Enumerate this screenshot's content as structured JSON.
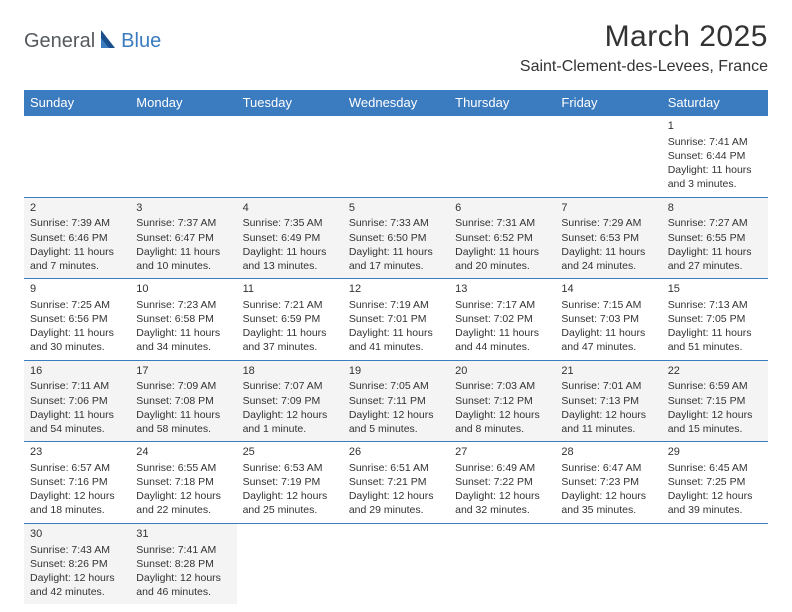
{
  "logo": {
    "part1": "General",
    "part2": "Blue"
  },
  "title": "March 2025",
  "location": "Saint-Clement-des-Levees, France",
  "colors": {
    "header_bg": "#3b7bbf",
    "header_text": "#ffffff",
    "row_alt_bg": "#f4f4f4",
    "border": "#3b7bbf",
    "logo_gray": "#555a5e",
    "logo_blue": "#3b7bbf"
  },
  "weekdays": [
    "Sunday",
    "Monday",
    "Tuesday",
    "Wednesday",
    "Thursday",
    "Friday",
    "Saturday"
  ],
  "weeks": [
    [
      null,
      null,
      null,
      null,
      null,
      null,
      {
        "day": "1",
        "sunrise": "Sunrise: 7:41 AM",
        "sunset": "Sunset: 6:44 PM",
        "daylight1": "Daylight: 11 hours",
        "daylight2": "and 3 minutes."
      }
    ],
    [
      {
        "day": "2",
        "sunrise": "Sunrise: 7:39 AM",
        "sunset": "Sunset: 6:46 PM",
        "daylight1": "Daylight: 11 hours",
        "daylight2": "and 7 minutes."
      },
      {
        "day": "3",
        "sunrise": "Sunrise: 7:37 AM",
        "sunset": "Sunset: 6:47 PM",
        "daylight1": "Daylight: 11 hours",
        "daylight2": "and 10 minutes."
      },
      {
        "day": "4",
        "sunrise": "Sunrise: 7:35 AM",
        "sunset": "Sunset: 6:49 PM",
        "daylight1": "Daylight: 11 hours",
        "daylight2": "and 13 minutes."
      },
      {
        "day": "5",
        "sunrise": "Sunrise: 7:33 AM",
        "sunset": "Sunset: 6:50 PM",
        "daylight1": "Daylight: 11 hours",
        "daylight2": "and 17 minutes."
      },
      {
        "day": "6",
        "sunrise": "Sunrise: 7:31 AM",
        "sunset": "Sunset: 6:52 PM",
        "daylight1": "Daylight: 11 hours",
        "daylight2": "and 20 minutes."
      },
      {
        "day": "7",
        "sunrise": "Sunrise: 7:29 AM",
        "sunset": "Sunset: 6:53 PM",
        "daylight1": "Daylight: 11 hours",
        "daylight2": "and 24 minutes."
      },
      {
        "day": "8",
        "sunrise": "Sunrise: 7:27 AM",
        "sunset": "Sunset: 6:55 PM",
        "daylight1": "Daylight: 11 hours",
        "daylight2": "and 27 minutes."
      }
    ],
    [
      {
        "day": "9",
        "sunrise": "Sunrise: 7:25 AM",
        "sunset": "Sunset: 6:56 PM",
        "daylight1": "Daylight: 11 hours",
        "daylight2": "and 30 minutes."
      },
      {
        "day": "10",
        "sunrise": "Sunrise: 7:23 AM",
        "sunset": "Sunset: 6:58 PM",
        "daylight1": "Daylight: 11 hours",
        "daylight2": "and 34 minutes."
      },
      {
        "day": "11",
        "sunrise": "Sunrise: 7:21 AM",
        "sunset": "Sunset: 6:59 PM",
        "daylight1": "Daylight: 11 hours",
        "daylight2": "and 37 minutes."
      },
      {
        "day": "12",
        "sunrise": "Sunrise: 7:19 AM",
        "sunset": "Sunset: 7:01 PM",
        "daylight1": "Daylight: 11 hours",
        "daylight2": "and 41 minutes."
      },
      {
        "day": "13",
        "sunrise": "Sunrise: 7:17 AM",
        "sunset": "Sunset: 7:02 PM",
        "daylight1": "Daylight: 11 hours",
        "daylight2": "and 44 minutes."
      },
      {
        "day": "14",
        "sunrise": "Sunrise: 7:15 AM",
        "sunset": "Sunset: 7:03 PM",
        "daylight1": "Daylight: 11 hours",
        "daylight2": "and 47 minutes."
      },
      {
        "day": "15",
        "sunrise": "Sunrise: 7:13 AM",
        "sunset": "Sunset: 7:05 PM",
        "daylight1": "Daylight: 11 hours",
        "daylight2": "and 51 minutes."
      }
    ],
    [
      {
        "day": "16",
        "sunrise": "Sunrise: 7:11 AM",
        "sunset": "Sunset: 7:06 PM",
        "daylight1": "Daylight: 11 hours",
        "daylight2": "and 54 minutes."
      },
      {
        "day": "17",
        "sunrise": "Sunrise: 7:09 AM",
        "sunset": "Sunset: 7:08 PM",
        "daylight1": "Daylight: 11 hours",
        "daylight2": "and 58 minutes."
      },
      {
        "day": "18",
        "sunrise": "Sunrise: 7:07 AM",
        "sunset": "Sunset: 7:09 PM",
        "daylight1": "Daylight: 12 hours",
        "daylight2": "and 1 minute."
      },
      {
        "day": "19",
        "sunrise": "Sunrise: 7:05 AM",
        "sunset": "Sunset: 7:11 PM",
        "daylight1": "Daylight: 12 hours",
        "daylight2": "and 5 minutes."
      },
      {
        "day": "20",
        "sunrise": "Sunrise: 7:03 AM",
        "sunset": "Sunset: 7:12 PM",
        "daylight1": "Daylight: 12 hours",
        "daylight2": "and 8 minutes."
      },
      {
        "day": "21",
        "sunrise": "Sunrise: 7:01 AM",
        "sunset": "Sunset: 7:13 PM",
        "daylight1": "Daylight: 12 hours",
        "daylight2": "and 11 minutes."
      },
      {
        "day": "22",
        "sunrise": "Sunrise: 6:59 AM",
        "sunset": "Sunset: 7:15 PM",
        "daylight1": "Daylight: 12 hours",
        "daylight2": "and 15 minutes."
      }
    ],
    [
      {
        "day": "23",
        "sunrise": "Sunrise: 6:57 AM",
        "sunset": "Sunset: 7:16 PM",
        "daylight1": "Daylight: 12 hours",
        "daylight2": "and 18 minutes."
      },
      {
        "day": "24",
        "sunrise": "Sunrise: 6:55 AM",
        "sunset": "Sunset: 7:18 PM",
        "daylight1": "Daylight: 12 hours",
        "daylight2": "and 22 minutes."
      },
      {
        "day": "25",
        "sunrise": "Sunrise: 6:53 AM",
        "sunset": "Sunset: 7:19 PM",
        "daylight1": "Daylight: 12 hours",
        "daylight2": "and 25 minutes."
      },
      {
        "day": "26",
        "sunrise": "Sunrise: 6:51 AM",
        "sunset": "Sunset: 7:21 PM",
        "daylight1": "Daylight: 12 hours",
        "daylight2": "and 29 minutes."
      },
      {
        "day": "27",
        "sunrise": "Sunrise: 6:49 AM",
        "sunset": "Sunset: 7:22 PM",
        "daylight1": "Daylight: 12 hours",
        "daylight2": "and 32 minutes."
      },
      {
        "day": "28",
        "sunrise": "Sunrise: 6:47 AM",
        "sunset": "Sunset: 7:23 PM",
        "daylight1": "Daylight: 12 hours",
        "daylight2": "and 35 minutes."
      },
      {
        "day": "29",
        "sunrise": "Sunrise: 6:45 AM",
        "sunset": "Sunset: 7:25 PM",
        "daylight1": "Daylight: 12 hours",
        "daylight2": "and 39 minutes."
      }
    ],
    [
      {
        "day": "30",
        "sunrise": "Sunrise: 7:43 AM",
        "sunset": "Sunset: 8:26 PM",
        "daylight1": "Daylight: 12 hours",
        "daylight2": "and 42 minutes."
      },
      {
        "day": "31",
        "sunrise": "Sunrise: 7:41 AM",
        "sunset": "Sunset: 8:28 PM",
        "daylight1": "Daylight: 12 hours",
        "daylight2": "and 46 minutes."
      },
      null,
      null,
      null,
      null,
      null
    ]
  ]
}
